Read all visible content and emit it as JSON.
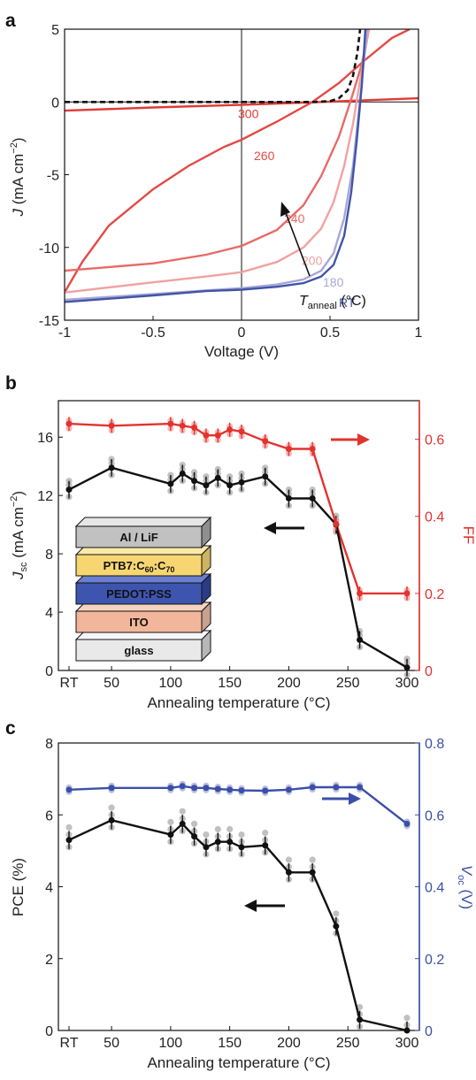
{
  "panels": {
    "a": "a",
    "b": "b",
    "c": "c"
  },
  "colors": {
    "black": "#111111",
    "red": "#e2332f",
    "blue": "#3b4fa8",
    "grey_points": "#8e8e8e"
  },
  "chart_data": [
    {
      "panel": "a",
      "type": "line",
      "xlabel": "Voltage (V)",
      "ylabel_main": "J",
      "ylabel_rest": " (mA cm",
      "ylabel_sup": "−2",
      "ylabel_tail": ")",
      "xlim": [
        -1,
        1
      ],
      "ylim": [
        -15,
        5
      ],
      "xticks": [
        -1,
        -0.5,
        0,
        0.5,
        1
      ],
      "xtick_labels": [
        "-1",
        "-0.5",
        "0",
        "0.5",
        "1"
      ],
      "yticks": [
        -15,
        -10,
        -5,
        0,
        5
      ],
      "ytick_labels": [
        "-15",
        "-10",
        "-5",
        "0",
        "5"
      ],
      "series": [
        {
          "name": "300",
          "color": "#e03a37",
          "points": [
            [
              -1,
              -0.6
            ],
            [
              -0.5,
              -0.38
            ],
            [
              0,
              -0.2
            ],
            [
              0.5,
              0.02
            ],
            [
              1,
              0.25
            ]
          ]
        },
        {
          "name": "260",
          "color": "#e34a46",
          "points": [
            [
              -1,
              -13.1
            ],
            [
              -0.9,
              -11.0
            ],
            [
              -0.75,
              -8.5
            ],
            [
              -0.5,
              -6.0
            ],
            [
              -0.3,
              -4.4
            ],
            [
              -0.1,
              -3.1
            ],
            [
              0,
              -2.6
            ],
            [
              0.2,
              -1.35
            ],
            [
              0.4,
              0.0
            ],
            [
              0.55,
              1.3
            ],
            [
              0.7,
              2.9
            ],
            [
              0.85,
              4.4
            ],
            [
              0.95,
              5.0
            ]
          ]
        },
        {
          "name": "240",
          "color": "#e86a67",
          "points": [
            [
              -1,
              -11.6
            ],
            [
              -0.5,
              -11.1
            ],
            [
              -0.2,
              -10.5
            ],
            [
              0,
              -9.9
            ],
            [
              0.2,
              -8.8
            ],
            [
              0.35,
              -7.1
            ],
            [
              0.45,
              -5.1
            ],
            [
              0.55,
              -2.4
            ],
            [
              0.62,
              0.2
            ],
            [
              0.68,
              2.6
            ],
            [
              0.72,
              5.0
            ]
          ]
        },
        {
          "name": "200",
          "color": "#f2a1a1",
          "points": [
            [
              -1,
              -13.1
            ],
            [
              -0.5,
              -12.4
            ],
            [
              -0.2,
              -12.0
            ],
            [
              0,
              -11.7
            ],
            [
              0.2,
              -11.0
            ],
            [
              0.35,
              -10.0
            ],
            [
              0.45,
              -8.7
            ],
            [
              0.52,
              -6.9
            ],
            [
              0.58,
              -4.4
            ],
            [
              0.63,
              -1.5
            ],
            [
              0.67,
              1.5
            ],
            [
              0.72,
              5.0
            ]
          ]
        },
        {
          "name": "180",
          "color": "#a8a6d6",
          "points": [
            [
              -1,
              -13.6
            ],
            [
              -0.5,
              -13.2
            ],
            [
              -0.2,
              -12.95
            ],
            [
              0,
              -12.8
            ],
            [
              0.2,
              -12.55
            ],
            [
              0.35,
              -12.2
            ],
            [
              0.45,
              -11.6
            ],
            [
              0.52,
              -10.4
            ],
            [
              0.58,
              -8.0
            ],
            [
              0.63,
              -4.4
            ],
            [
              0.67,
              0.2
            ],
            [
              0.71,
              5.0
            ]
          ]
        },
        {
          "name": "RT",
          "color": "#4154a6",
          "points": [
            [
              -1,
              -13.75
            ],
            [
              -0.5,
              -13.3
            ],
            [
              -0.2,
              -13.0
            ],
            [
              0,
              -12.9
            ],
            [
              0.2,
              -12.7
            ],
            [
              0.35,
              -12.45
            ],
            [
              0.45,
              -12.0
            ],
            [
              0.52,
              -11.2
            ],
            [
              0.58,
              -9.2
            ],
            [
              0.62,
              -6.2
            ],
            [
              0.65,
              -2.8
            ],
            [
              0.68,
              1.2
            ],
            [
              0.7,
              5.0
            ]
          ]
        },
        {
          "name": "dark",
          "color": "#111111",
          "dashed": true,
          "points": [
            [
              -1,
              0.0
            ],
            [
              0,
              0.0
            ],
            [
              0.4,
              0.0
            ],
            [
              0.5,
              0.05
            ],
            [
              0.55,
              0.25
            ],
            [
              0.6,
              0.8
            ],
            [
              0.63,
              1.8
            ],
            [
              0.655,
              3.4
            ],
            [
              0.67,
              5.0
            ]
          ]
        }
      ],
      "labels": [
        {
          "text": "300",
          "x": -0.02,
          "y": -1.1
        },
        {
          "text": "260",
          "x": 0.07,
          "y": -4.0
        },
        {
          "text": "240",
          "x": 0.24,
          "y": -8.3
        },
        {
          "text": "200",
          "x": 0.34,
          "y": -11.2
        },
        {
          "text": "180",
          "x": 0.46,
          "y": -12.7
        },
        {
          "text": "RT",
          "x": 0.55,
          "y": -14.1
        }
      ],
      "tanneal": {
        "main": "T",
        "sub": "anneal",
        "unit": " (°C)"
      }
    },
    {
      "panel": "b",
      "type": "line",
      "xlabel": "Annealing temperature (°C)",
      "ylabel_left_main": "J",
      "ylabel_left_sub": "sc",
      "ylabel_left_rest": " (mA cm",
      "ylabel_left_sup": "−2",
      "ylabel_left_tail": ")",
      "ylabel_right": "FF",
      "x": [
        "RT",
        50,
        100,
        110,
        120,
        130,
        140,
        150,
        160,
        180,
        200,
        220,
        240,
        260,
        300
      ],
      "xtick_labels": [
        "RT",
        "50",
        "100",
        "150",
        "200",
        "250",
        "300"
      ],
      "ylim_left": [
        0,
        18.5
      ],
      "yticks_left": [
        0,
        4,
        8,
        12,
        16
      ],
      "ylim_right": [
        0,
        0.7
      ],
      "yticks_right": [
        0,
        0.2,
        0.4,
        0.6
      ],
      "ytick_labels_right": [
        "0",
        "0.2",
        "0.4",
        "0.6"
      ],
      "series": [
        {
          "name": "Jsc",
          "axis": "left",
          "values": [
            12.4,
            13.9,
            12.8,
            13.5,
            13.0,
            12.7,
            13.2,
            12.7,
            12.9,
            13.3,
            11.8,
            11.8,
            10.0,
            2.1,
            0.2
          ]
        },
        {
          "name": "FF",
          "axis": "right",
          "values": [
            0.64,
            0.635,
            0.64,
            0.635,
            0.63,
            0.61,
            0.61,
            0.625,
            0.62,
            0.595,
            0.575,
            0.575,
            0.38,
            0.2,
            0.2
          ]
        }
      ],
      "legend_stack": [
        "Al / LiF",
        "PTB7:C60:C70",
        "PEDOT:PSS",
        "ITO",
        "glass"
      ]
    },
    {
      "panel": "c",
      "type": "line",
      "xlabel": "Annealing temperature (°C)",
      "ylabel_left": "PCE (%)",
      "ylabel_right_main": "V",
      "ylabel_right_sub": "oc",
      "ylabel_right_rest": " (V)",
      "x": [
        "RT",
        50,
        100,
        110,
        120,
        130,
        140,
        150,
        160,
        180,
        200,
        220,
        240,
        260,
        300
      ],
      "xtick_labels": [
        "RT",
        "50",
        "100",
        "150",
        "200",
        "250",
        "300"
      ],
      "ylim_left": [
        0,
        8
      ],
      "yticks_left": [
        0,
        2,
        4,
        6,
        8
      ],
      "ylim_right": [
        0,
        0.8
      ],
      "yticks_right": [
        0,
        0.2,
        0.4,
        0.6,
        0.8
      ],
      "ytick_labels_right": [
        "0",
        "0.2",
        "0.4",
        "0.6",
        "0.8"
      ],
      "series": [
        {
          "name": "PCE",
          "axis": "left",
          "values": [
            5.3,
            5.85,
            5.45,
            5.75,
            5.4,
            5.1,
            5.25,
            5.25,
            5.1,
            5.15,
            4.4,
            4.4,
            2.9,
            0.3,
            0.0
          ]
        },
        {
          "name": "Voc",
          "axis": "right",
          "values": [
            0.67,
            0.675,
            0.675,
            0.68,
            0.675,
            0.675,
            0.672,
            0.67,
            0.668,
            0.667,
            0.67,
            0.677,
            0.677,
            0.677,
            0.575
          ]
        }
      ]
    }
  ]
}
